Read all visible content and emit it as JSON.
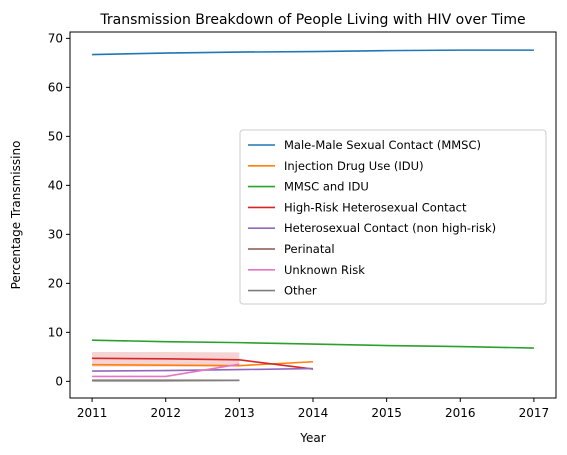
{
  "chart_data": {
    "type": "line",
    "title": "Transmission Breakdown of People Living with HIV over Time",
    "xlabel": "Year",
    "ylabel": "Percentage Transmissino",
    "xlim": [
      2010.7,
      2017.3
    ],
    "ylim": [
      -3.4,
      71.3
    ],
    "xticks": [
      2011,
      2012,
      2013,
      2014,
      2015,
      2016,
      2017
    ],
    "yticks": [
      0,
      10,
      20,
      30,
      40,
      50,
      60,
      70
    ],
    "grid": false,
    "legend_position": "center-right",
    "series": [
      {
        "name": "Male-Male Sexual Contact (MMSC)",
        "color": "#1f77b4",
        "x": [
          2011,
          2012,
          2013,
          2014,
          2015,
          2016,
          2017
        ],
        "y": [
          66.7,
          67.0,
          67.2,
          67.3,
          67.5,
          67.6,
          67.6
        ]
      },
      {
        "name": "Injection Drug Use (IDU)",
        "color": "#ff7f0e",
        "x": [
          2011,
          2012,
          2013,
          2014
        ],
        "y": [
          3.4,
          3.3,
          3.2,
          4.0
        ]
      },
      {
        "name": "MMSC and IDU",
        "color": "#2ca02c",
        "x": [
          2011,
          2012,
          2013,
          2014,
          2015,
          2016,
          2017
        ],
        "y": [
          8.4,
          8.1,
          7.9,
          7.6,
          7.3,
          7.1,
          6.8
        ]
      },
      {
        "name": "High-Risk Heterosexual Contact",
        "color": "#d62728",
        "x": [
          2011,
          2012,
          2013,
          2014
        ],
        "y": [
          4.7,
          4.6,
          4.4,
          2.5
        ],
        "band": {
          "x": [
            2011,
            2012,
            2013
          ],
          "low": [
            3.0,
            3.0,
            3.0
          ],
          "high": [
            6.0,
            6.0,
            5.9
          ]
        }
      },
      {
        "name": "Heterosexual Contact (non high-risk)",
        "color": "#9467bd",
        "x": [
          2011,
          2012,
          2013,
          2014
        ],
        "y": [
          2.1,
          2.2,
          2.4,
          2.6
        ]
      },
      {
        "name": "Perinatal",
        "color": "#8c564b",
        "x": [
          2011,
          2012,
          2013
        ],
        "y": [
          0.2,
          0.2,
          0.2
        ]
      },
      {
        "name": "Unknown Risk",
        "color": "#e377c2",
        "x": [
          2011,
          2012,
          2013
        ],
        "y": [
          1.0,
          1.0,
          3.5
        ]
      },
      {
        "name": "Other",
        "color": "#7f7f7f",
        "x": [
          2011,
          2012,
          2013
        ],
        "y": [
          0.1,
          0.1,
          0.2
        ]
      }
    ]
  }
}
